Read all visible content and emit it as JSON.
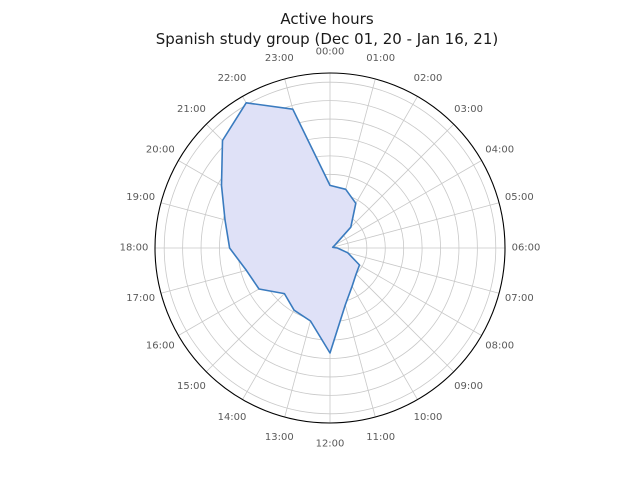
{
  "title": {
    "line1": "Active hours",
    "line2": "Spanish study group (Dec 01, 20 - Jan 16, 21)"
  },
  "chart_data": {
    "type": "line",
    "subtype": "polar-radar-filled-area",
    "title": "Active hours",
    "subtitle": "Spanish study group (Dec 01, 20 - Jan 16, 21)",
    "categories": [
      "00:00",
      "01:00",
      "02:00",
      "03:00",
      "04:00",
      "05:00",
      "06:00",
      "07:00",
      "08:00",
      "09:00",
      "10:00",
      "11:00",
      "12:00",
      "13:00",
      "14:00",
      "15:00",
      "16:00",
      "17:00",
      "18:00",
      "19:00",
      "20:00",
      "21:00",
      "22:00",
      "23:00"
    ],
    "values": [
      3.4,
      3.3,
      2.8,
      1.6,
      0.3,
      0.15,
      0.4,
      1.0,
      1.85,
      2.0,
      2.4,
      3.2,
      5.7,
      4.1,
      3.9,
      3.5,
      4.45,
      4.7,
      5.45,
      5.9,
      6.8,
      8.25,
      9.1,
      7.8
    ],
    "units_note": "radius estimated in grid-ring units; 9 concentric gridline rings, outer boundary at 9.5",
    "rlim": [
      0,
      9.5
    ],
    "rticks": [
      1,
      2,
      3,
      4,
      5,
      6,
      7,
      8,
      9
    ],
    "rtick_labels_visible": false,
    "angular_ticks_deg_step": 15,
    "zero_location": "top",
    "direction": "clockwise",
    "grid": true,
    "legend": "none",
    "colors": {
      "line": "#3a7bbf",
      "fill": "#dfe1f7",
      "grid": "#c8c8c8",
      "outer_ring": "#000000",
      "tick_label": "#5a5a5a",
      "title": "#1a1a1a",
      "background": "#ffffff"
    }
  }
}
